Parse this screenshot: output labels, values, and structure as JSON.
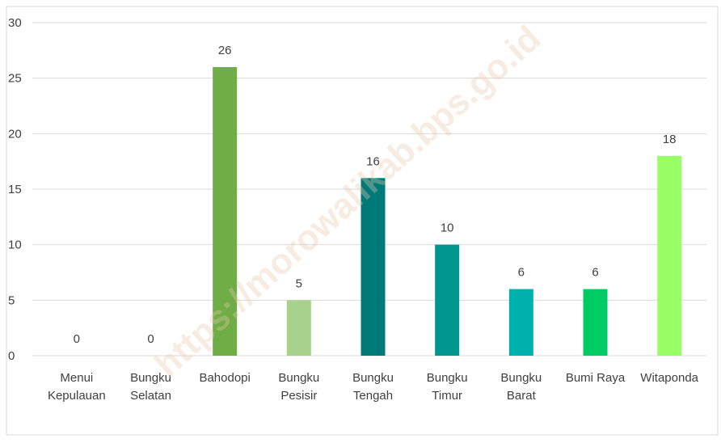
{
  "chart_data": {
    "type": "bar",
    "categories": [
      "Menui\nKepulauan",
      "Bungku\nSelatan",
      "Bahodopi",
      "Bungku\nPesisir",
      "Bungku\nTengah",
      "Bungku\nTimur",
      "Bungku\nBarat",
      "Bumi Raya",
      "Witaponda"
    ],
    "values": [
      0,
      0,
      26,
      5,
      16,
      10,
      6,
      6,
      18
    ],
    "colors": [
      "#4f8f3a",
      "#5e9c45",
      "#70ad47",
      "#a9d18e",
      "#007a78",
      "#009690",
      "#00b0aa",
      "#00cc66",
      "#99ff66"
    ],
    "ylim": [
      0,
      30
    ],
    "yticks": [
      0,
      5,
      10,
      15,
      20,
      25,
      30
    ],
    "grid": true,
    "watermark": "https://morowalikab.bps.go.id"
  }
}
